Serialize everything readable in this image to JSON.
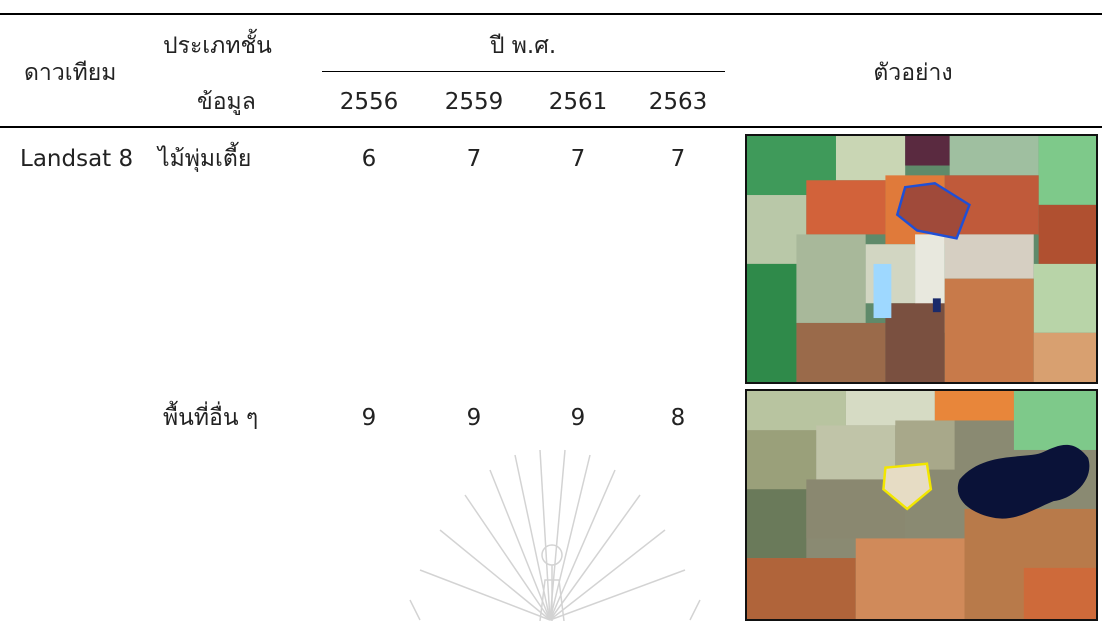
{
  "table": {
    "header": {
      "satellite": "ดาวเทียม",
      "class_line1": "ประเภทชั้น",
      "class_line2": "ข้อมูล",
      "year_group": "ปี พ.ศ.",
      "years": [
        "2556",
        "2559",
        "2561",
        "2563"
      ],
      "example": "ตัวอย่าง"
    },
    "rows": [
      {
        "satellite": "Landsat 8",
        "class_name": "ไม้พุ่มเตี้ย",
        "values": [
          "6",
          "7",
          "7",
          "7"
        ],
        "example_image": "landsat-false-color-shrub-sample",
        "outline_color": "#1f4fd6"
      },
      {
        "satellite": "",
        "class_name": "พื้นที่อื่น ๆ",
        "values": [
          "9",
          "9",
          "9",
          "8"
        ],
        "example_image": "landsat-false-color-other-area-sample",
        "outline_color": "#f2e600"
      }
    ]
  },
  "watermark": "university-seal-watermark"
}
